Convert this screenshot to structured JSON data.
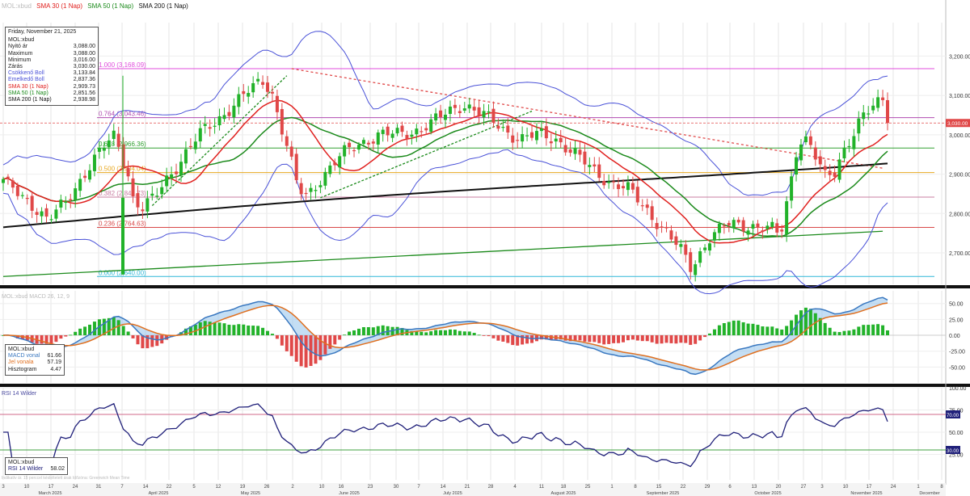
{
  "colors": {
    "up": "#22b22a",
    "down": "#e04848",
    "sma30": "#e0201e",
    "sma50": "#1b8a1b",
    "sma200": "#111111",
    "bollinger": "#4a52d8",
    "macd": "#3a78c0",
    "signal": "#e07020",
    "rsi": "#20207a",
    "fib_top": "#e04cdc",
    "fib_786": "#b04cb0",
    "fib_618": "#30a030",
    "fib_500": "#e8a820",
    "fib_382": "#c87ca0",
    "fib_236": "#d84848",
    "fib_0": "#30b8d8",
    "price_tag": "#e04848"
  },
  "header": {
    "title": "MOL:xbud",
    "sma30_label": "SMA 30 (1 Nap)",
    "sma50_label": "SMA 50 (1 Nap)",
    "sma200_label": "SMA 200 (1 Nap)"
  },
  "price_info": {
    "date": "Friday, November 21, 2025",
    "ticker": "MOL:xbud",
    "rows": [
      {
        "label": "Nyitó ár",
        "value": "3,088.00",
        "color": "#222222"
      },
      {
        "label": "Maximum",
        "value": "3,088.00",
        "color": "#222222"
      },
      {
        "label": "Minimum",
        "value": "3,016.00",
        "color": "#222222"
      },
      {
        "label": "Zárás",
        "value": "3,030.00",
        "color": "#222222"
      },
      {
        "label": "Csökkenő Boll",
        "value": "3,133.84",
        "color": "#4a52d8"
      },
      {
        "label": "Emelkedő Boll",
        "value": "2,837.36",
        "color": "#4a52d8"
      },
      {
        "label": "SMA 30 (1 Nap)",
        "value": "2,909.73",
        "color": "#e0201e"
      },
      {
        "label": "SMA 50 (1 Nap)",
        "value": "2,851.56",
        "color": "#1b8a1b"
      },
      {
        "label": "SMA 200 (1 Nap)",
        "value": "2,938.98",
        "color": "#111111"
      }
    ]
  },
  "macd_info": {
    "ticker": "MOL:xbud",
    "rows": [
      {
        "label": "MACD vonal",
        "value": "61.66",
        "color": "#3a78c0"
      },
      {
        "label": "Jel vonala",
        "value": "57.19",
        "color": "#e07020"
      },
      {
        "label": "Hisztogram",
        "value": "4.47",
        "color": "#222222"
      }
    ]
  },
  "rsi_info": {
    "ticker": "MOL:xbud",
    "label": "RSI 14 Wilder",
    "value": "58.02"
  },
  "macd_title": "MOL:xbud MACD 26, 12, 9",
  "rsi_title": "RSI 14 Wilder",
  "footer_note": "Indikatív ár. 15 perccel késleltetett árak   Időzóna: Greenwich Mean Time",
  "price_tag": "3,030.00",
  "chart_data": {
    "type": "candlestick",
    "price_axis": {
      "ylim": [
        2620,
        3285
      ],
      "ticks": [
        "2,700.00",
        "2,800.00",
        "2,900.00",
        "3,000.00",
        "3,100.00",
        "3,200.00"
      ],
      "tick_values": [
        2700,
        2800,
        2900,
        3000,
        3100,
        3200
      ]
    },
    "macd_axis": {
      "ylim": [
        -75,
        70
      ],
      "ticks": [
        "50.00",
        "25.00",
        "0.00",
        "-25.00",
        "-50.00"
      ],
      "tick_values": [
        50,
        25,
        0,
        -25,
        -50
      ]
    },
    "rsi_axis": {
      "ylim": [
        0,
        100
      ],
      "ticks": [
        "100.00",
        "75.00",
        "50.00",
        "25.00"
      ],
      "tick_values": [
        100,
        75,
        50,
        25
      ],
      "markers": [
        {
          "value": 70,
          "label": "70.00"
        },
        {
          "value": 30,
          "label": "30.00"
        }
      ]
    },
    "x_day_ticks": [
      "3",
      "10",
      "17",
      "24",
      "31",
      "7",
      "14",
      "22",
      "5",
      "12",
      "19",
      "26",
      "2",
      "10",
      "16",
      "23",
      "30",
      "7",
      "14",
      "21",
      "28",
      "4",
      "11",
      "18",
      "25",
      "1",
      "8",
      "15",
      "22",
      "29",
      "6",
      "13",
      "20",
      "27",
      "3",
      "10",
      "17",
      "24",
      "1",
      "8"
    ],
    "x_month_labels": [
      "March 2025",
      "April 2025",
      "May 2025",
      "June 2025",
      "July 2025",
      "August 2025",
      "September 2025",
      "October 2025",
      "November 2025",
      "December"
    ],
    "fibonacci": [
      {
        "label": "1.000 (3,168.09)",
        "value": 3168.09
      },
      {
        "label": "0.764 (3,043.46)",
        "value": 3043.46
      },
      {
        "label": "0.618 (2,966.36)",
        "value": 2966.36
      },
      {
        "label": "0.500 (2,904.04)",
        "value": 2904.04
      },
      {
        "label": "0.382 (2,841.73)",
        "value": 2841.73
      },
      {
        "label": "0.236 (2,764.63)",
        "value": 2764.63
      },
      {
        "label": "0.000 (2,640.00)",
        "value": 2640.0
      }
    ],
    "last_close": 3030.0
  }
}
